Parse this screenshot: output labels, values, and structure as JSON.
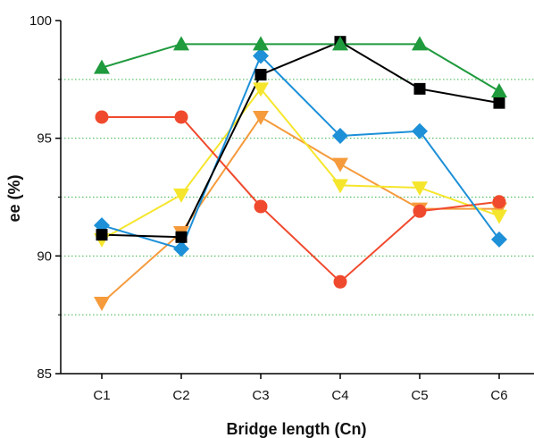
{
  "chart_data": {
    "type": "line",
    "title": "",
    "xlabel": "Bridge length (Cn)",
    "ylabel": "ee (%)",
    "categories": [
      "C1",
      "C2",
      "C3",
      "C4",
      "C5",
      "C6"
    ],
    "ylim": [
      85,
      100
    ],
    "yticks": [
      85,
      90,
      95,
      100
    ],
    "grid": {
      "horizontal": true,
      "style": "dotted",
      "color": "#3cb44a",
      "values": [
        87.5,
        90,
        92.5,
        95,
        97.5
      ]
    },
    "legend": "none",
    "series": [
      {
        "values": [
          98.0,
          99.0,
          99.0,
          99.0,
          99.0,
          97.0
        ],
        "color": "#1f9a3d",
        "marker": "triangle-up"
      },
      {
        "values": [
          90.9,
          90.8,
          97.7,
          99.1,
          97.1,
          96.5
        ],
        "color": "#000000",
        "marker": "square"
      },
      {
        "values": [
          95.9,
          95.9,
          92.1,
          88.9,
          91.9,
          92.3
        ],
        "color": "#f04a2e",
        "marker": "circle"
      },
      {
        "values": [
          91.3,
          90.3,
          98.5,
          95.1,
          95.3,
          90.7
        ],
        "color": "#1d90d8",
        "marker": "diamond"
      },
      {
        "values": [
          90.7,
          92.6,
          97.1,
          93.0,
          92.9,
          91.7
        ],
        "color": "#f5e62d",
        "marker": "triangle-down"
      },
      {
        "values": [
          88.0,
          91.0,
          95.9,
          93.9,
          92.0,
          92.0
        ],
        "color": "#f59b3c",
        "marker": "triangle-down"
      }
    ]
  }
}
